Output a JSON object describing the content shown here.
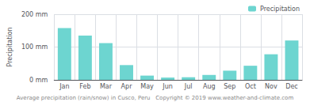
{
  "chart_data": {
    "type": "bar",
    "categories": [
      "Jan",
      "Feb",
      "Mar",
      "Apr",
      "May",
      "Jun",
      "Jul",
      "Aug",
      "Sep",
      "Oct",
      "Nov",
      "Dec"
    ],
    "series": [
      {
        "name": "Precipitation",
        "color": "#6dd5d0",
        "values": [
          158,
          135,
          112,
          45,
          13,
          7,
          8,
          15,
          28,
          43,
          78,
          120
        ]
      }
    ],
    "ylabel": "Precipitation",
    "ylim": [
      0,
      200
    ],
    "yticks": [
      {
        "value": 0,
        "label": "0 mm"
      },
      {
        "value": 100,
        "label": "100 mm"
      },
      {
        "value": 200,
        "label": "200 mm"
      }
    ],
    "annotations": [
      "Average precipitation (rain/snow) in Cusco, Peru   Copyright © 2019 www.weather-and-climate.com"
    ],
    "legend": "upper right",
    "grid": true
  }
}
